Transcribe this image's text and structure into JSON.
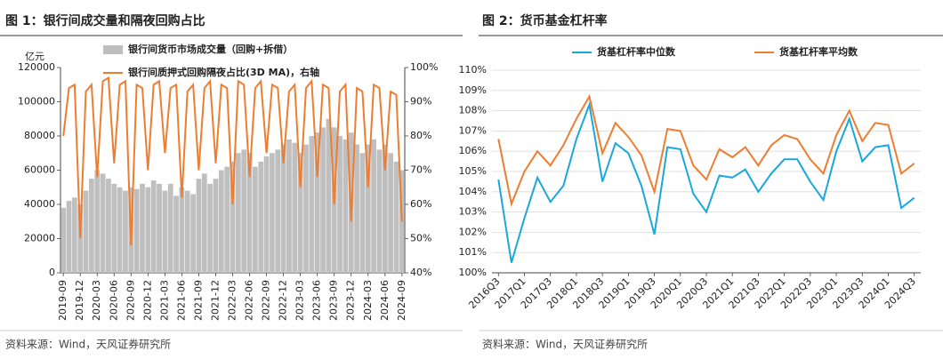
{
  "chart_data": [
    {
      "type": "combo",
      "title": "图 1：银行间成交量和隔夜回购占比",
      "ylabel": "亿元",
      "source": "资料来源：Wind，天风证券研究所",
      "legend": "top-left",
      "categories": [
        "2019-09",
        null,
        null,
        "2019-12",
        null,
        null,
        "2020-03",
        null,
        null,
        "2020-06",
        null,
        null,
        "2020-09",
        null,
        null,
        "2020-12",
        null,
        null,
        "2021-03",
        null,
        null,
        "2021-06",
        null,
        null,
        "2021-09",
        null,
        null,
        "2021-12",
        null,
        null,
        "2022-03",
        null,
        null,
        "2022-06",
        null,
        null,
        "2022-09",
        null,
        null,
        "2022-12",
        null,
        null,
        "2023-03",
        null,
        null,
        "2023-06",
        null,
        null,
        "2023-09",
        null,
        null,
        "2023-12",
        null,
        null,
        "2024-03",
        null,
        null,
        "2024-06",
        null,
        null,
        "2024-09"
      ],
      "ylim": [
        0,
        120000
      ],
      "yticks": [
        0,
        20000,
        40000,
        60000,
        80000,
        100000,
        120000
      ],
      "y2lim": [
        40,
        100
      ],
      "y2ticks": [
        {
          "value": 40,
          "label": "40%"
        },
        {
          "value": 50,
          "label": "50%"
        },
        {
          "value": 60,
          "label": "60%"
        },
        {
          "value": 70,
          "label": "70%"
        },
        {
          "value": 80,
          "label": "80%"
        },
        {
          "value": 90,
          "label": "90%"
        },
        {
          "value": 100,
          "label": "100%"
        }
      ],
      "series": [
        {
          "name": "银行间货币市场成交量（回购+拆借）",
          "type": "bar",
          "color": "#bfbfbf",
          "values": [
            38000,
            42000,
            44000,
            40000,
            48000,
            55000,
            60000,
            58000,
            55000,
            52000,
            50000,
            48000,
            50000,
            49000,
            52000,
            50000,
            54000,
            52000,
            48000,
            52000,
            45000,
            50000,
            48000,
            46000,
            55000,
            58000,
            52000,
            55000,
            60000,
            62000,
            65000,
            70000,
            72000,
            70000,
            62000,
            65000,
            68000,
            70000,
            72000,
            75000,
            78000,
            76000,
            70000,
            75000,
            80000,
            82000,
            85000,
            90000,
            85000,
            80000,
            78000,
            82000,
            75000,
            70000,
            75000,
            78000,
            72000,
            75000,
            70000,
            65000,
            60000
          ]
        },
        {
          "name": "银行间质押式回购隔夜占比(3D MA)，右轴",
          "type": "line",
          "axis": "y2",
          "color": "#ed7d31",
          "values": [
            80,
            94,
            95,
            50,
            93,
            95,
            68,
            96,
            97,
            72,
            95,
            96,
            48,
            95,
            94,
            70,
            95,
            96,
            75,
            94,
            95,
            62,
            93,
            95,
            70,
            94,
            96,
            72,
            95,
            94,
            60,
            96,
            95,
            68,
            94,
            96,
            75,
            95,
            94,
            72,
            93,
            95,
            65,
            94,
            96,
            68,
            95,
            94,
            60,
            93,
            95,
            55,
            94,
            93,
            65,
            95,
            94,
            70,
            93,
            92,
            55
          ]
        }
      ]
    },
    {
      "type": "line",
      "title": "图 2：货币基金杠杆率",
      "source": "资料来源：Wind，天风证券研究所",
      "legend": "top",
      "categories": [
        "2016Q3",
        null,
        "2017Q1",
        null,
        "2017Q3",
        null,
        "2018Q1",
        null,
        "2018Q3",
        null,
        "2019Q1",
        null,
        "2019Q3",
        null,
        "2020Q1",
        null,
        "2020Q3",
        null,
        "2021Q1",
        null,
        "2021Q3",
        null,
        "2022Q1",
        null,
        "2022Q3",
        null,
        "2023Q1",
        null,
        "2023Q3",
        null,
        "2024Q1",
        null,
        "2024Q3"
      ],
      "ylim": [
        100,
        110
      ],
      "yticks": [
        {
          "value": 100,
          "label": "100%"
        },
        {
          "value": 101,
          "label": "101%"
        },
        {
          "value": 102,
          "label": "102%"
        },
        {
          "value": 103,
          "label": "103%"
        },
        {
          "value": 104,
          "label": "104%"
        },
        {
          "value": 105,
          "label": "105%"
        },
        {
          "value": 106,
          "label": "106%"
        },
        {
          "value": 107,
          "label": "107%"
        },
        {
          "value": 108,
          "label": "108%"
        },
        {
          "value": 109,
          "label": "109%"
        },
        {
          "value": 110,
          "label": "110%"
        }
      ],
      "grid": true,
      "series": [
        {
          "name": "货基杠杆率中位数",
          "type": "line",
          "color": "#1aa7dc",
          "values": [
            104.6,
            100.5,
            102.7,
            104.7,
            103.5,
            104.3,
            106.6,
            108.3,
            104.5,
            106.4,
            105.9,
            104.3,
            101.9,
            106.2,
            106.1,
            103.9,
            103.0,
            104.8,
            104.7,
            105.1,
            104.0,
            104.9,
            105.6,
            105.6,
            104.5,
            103.6,
            106.0,
            107.6,
            105.5,
            106.2,
            106.3,
            103.2,
            103.7
          ]
        },
        {
          "name": "货基杠杆率平均数",
          "type": "line",
          "color": "#ed7d31",
          "values": [
            106.6,
            103.4,
            105.0,
            106.0,
            105.3,
            106.3,
            107.6,
            108.7,
            105.9,
            107.4,
            106.7,
            105.8,
            104.0,
            107.1,
            107.0,
            105.3,
            104.6,
            106.1,
            105.7,
            106.2,
            105.3,
            106.3,
            106.8,
            106.6,
            105.6,
            104.9,
            106.8,
            108.0,
            106.5,
            107.4,
            107.3,
            104.9,
            105.4
          ]
        }
      ]
    }
  ]
}
